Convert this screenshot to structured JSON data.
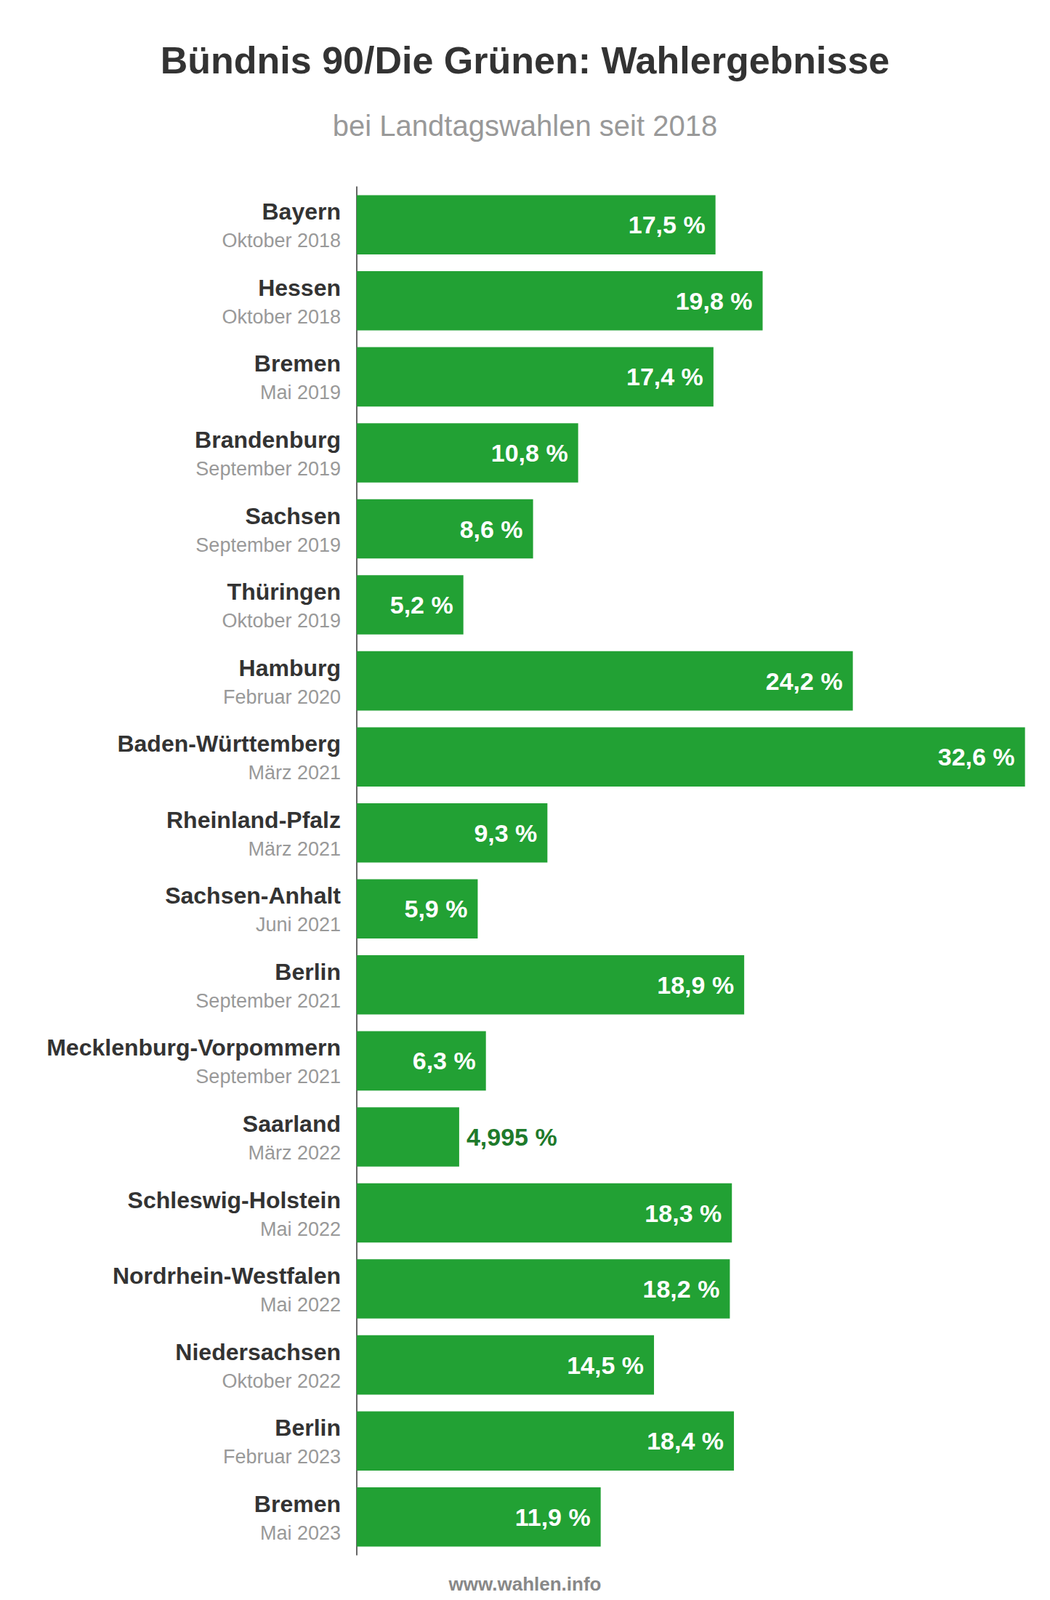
{
  "chart_data": {
    "type": "bar",
    "title": "Bündnis 90/Die Grünen: Wahlergebnisse",
    "subtitle": "bei Landtagswahlen seit 2018",
    "source": "www.wahlen.info",
    "orientation": "horizontal",
    "categories": [
      "Bayern",
      "Hessen",
      "Bremen",
      "Brandenburg",
      "Sachsen",
      "Thüringen",
      "Hamburg",
      "Baden-Württemberg",
      "Rheinland-Pfalz",
      "Sachsen-Anhalt",
      "Berlin",
      "Mecklenburg-Vorpommern",
      "Saarland",
      "Schleswig-Holstein",
      "Nordrhein-Westfalen",
      "Niedersachsen",
      "Berlin",
      "Bremen"
    ],
    "dates": [
      "Oktober 2018",
      "Oktober 2018",
      "Mai 2019",
      "September 2019",
      "September 2019",
      "Oktober 2019",
      "Februar 2020",
      "März 2021",
      "März 2021",
      "Juni 2021",
      "September 2021",
      "September 2021",
      "März 2022",
      "Mai 2022",
      "Mai 2022",
      "Oktober 2022",
      "Februar 2023",
      "Mai 2023"
    ],
    "values": [
      17.5,
      19.8,
      17.4,
      10.8,
      8.6,
      5.2,
      24.2,
      32.6,
      9.3,
      5.9,
      18.9,
      6.3,
      4.995,
      18.3,
      18.2,
      14.5,
      18.4,
      11.9
    ],
    "value_labels": [
      "17,5 %",
      "19,8 %",
      "17,4 %",
      "10,8 %",
      "8,6 %",
      "5,2 %",
      "24,2 %",
      "32,6 %",
      "9,3 %",
      "5,9 %",
      "18,9 %",
      "6,3 %",
      "4,995 %",
      "18,3 %",
      "18,2 %",
      "14,5 %",
      "18,4 %",
      "11,9 %"
    ],
    "xlim": [
      0,
      33.5
    ],
    "color": "#22a134",
    "data_labels": true,
    "tick_labels": "y",
    "grid": false
  }
}
